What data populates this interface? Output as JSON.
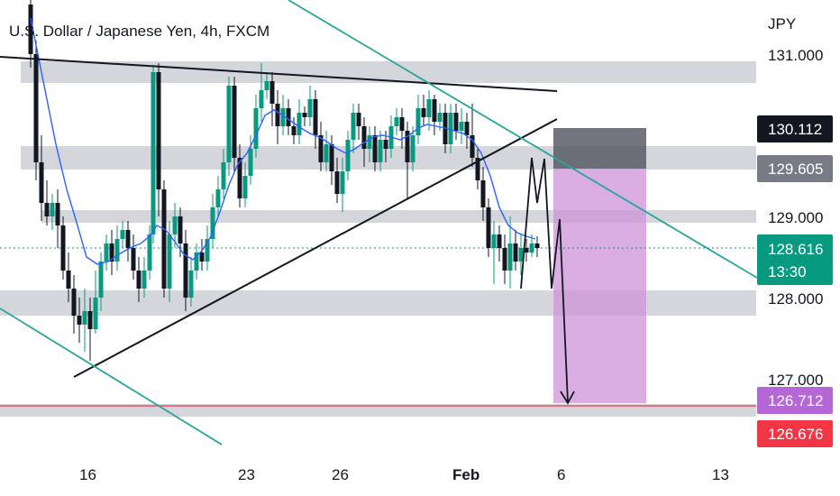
{
  "header": {
    "symbol_title": "U.S. Dollar / Japanese Yen, 4h, FXCM"
  },
  "price_axis": {
    "currency": "JPY",
    "tick_labels": [
      "131.000",
      "129.000",
      "128.000",
      "127.000"
    ]
  },
  "price_badges": [
    {
      "label": "130.112",
      "color": "#131722"
    },
    {
      "label": "129.605",
      "color": "#787b86"
    },
    {
      "label": "128.616",
      "sublabel": "13:30",
      "color": "#089981"
    },
    {
      "label": "126.712",
      "color": "#b667d6"
    },
    {
      "label": "126.676",
      "color": "#f23645"
    }
  ],
  "time_axis": {
    "tick_labels": [
      "16",
      "23",
      "26",
      "Feb",
      "6",
      "13"
    ]
  },
  "colors": {
    "bull": "#089981",
    "bear": "#131722",
    "ma_line": "#2962ff",
    "zone": "#b2b5be",
    "channel": "#26a69a",
    "target_zone": "#ce93d8",
    "stop_zone": "#50535e",
    "target_line": "#f23645"
  }
}
